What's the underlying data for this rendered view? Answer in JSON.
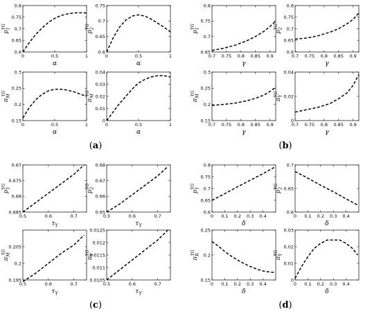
{
  "chart_data": [
    {
      "type": "line",
      "xlabel": "α",
      "ylabel": "p1YG",
      "xlim": [
        0,
        1
      ],
      "ylim": [
        0.6,
        0.8
      ],
      "xticks": [
        "0",
        "0.5",
        "1"
      ],
      "yticks": [
        "0.6",
        "0.65",
        "0.7",
        "0.75",
        "0.8"
      ],
      "series": [
        {
          "style": "dashed",
          "x": [
            0,
            0.1,
            0.2,
            0.3,
            0.4,
            0.5,
            0.6,
            0.7,
            0.8,
            0.9,
            1
          ],
          "y": [
            0.6,
            0.64,
            0.675,
            0.703,
            0.727,
            0.745,
            0.757,
            0.764,
            0.768,
            0.769,
            0.768
          ]
        }
      ]
    },
    {
      "type": "line",
      "xlabel": "α",
      "ylabel": "p2YG",
      "xlim": [
        0,
        1
      ],
      "ylim": [
        0.6,
        0.75
      ],
      "xticks": [
        "0",
        "0.5",
        "1"
      ],
      "yticks": [
        "0.6",
        "0.65",
        "0.7",
        "0.75"
      ],
      "series": [
        {
          "style": "dashed",
          "x": [
            0,
            0.1,
            0.2,
            0.3,
            0.4,
            0.5,
            0.6,
            0.7,
            0.8,
            0.9,
            1
          ],
          "y": [
            0.6,
            0.645,
            0.68,
            0.703,
            0.716,
            0.72,
            0.716,
            0.706,
            0.693,
            0.68,
            0.665
          ]
        }
      ]
    },
    {
      "type": "line",
      "xlabel": "γ",
      "ylabel": "p1YG",
      "xlim": [
        0.7,
        0.92
      ],
      "ylim": [
        0.65,
        0.8
      ],
      "xticks": [
        "0.7",
        "0.75",
        "0.8",
        "0.85",
        "0.9"
      ],
      "yticks": [
        "0.65",
        "0.7",
        "0.75",
        "0.8"
      ],
      "series": [
        {
          "style": "dashed",
          "x": [
            0.7,
            0.74,
            0.78,
            0.82,
            0.85,
            0.88,
            0.9,
            0.92
          ],
          "y": [
            0.655,
            0.662,
            0.672,
            0.686,
            0.7,
            0.717,
            0.732,
            0.75
          ]
        }
      ]
    },
    {
      "type": "line",
      "xlabel": "γ",
      "ylabel": "p2YG",
      "xlim": [
        0.7,
        0.92
      ],
      "ylim": [
        0.6,
        0.8
      ],
      "xticks": [
        "0.7",
        "0.75",
        "0.8",
        "0.85",
        "0.9"
      ],
      "yticks": [
        "0.6",
        "0.65",
        "0.7",
        "0.75",
        "0.8"
      ],
      "series": [
        {
          "style": "dashed",
          "x": [
            0.7,
            0.74,
            0.78,
            0.82,
            0.85,
            0.88,
            0.9,
            0.92
          ],
          "y": [
            0.655,
            0.66,
            0.67,
            0.685,
            0.7,
            0.722,
            0.74,
            0.768
          ]
        }
      ]
    },
    {
      "type": "line",
      "xlabel": "α",
      "ylabel": "πMYG",
      "xlim": [
        0,
        1
      ],
      "ylim": [
        0.15,
        0.3
      ],
      "xticks": [
        "0",
        "0.5",
        "1"
      ],
      "yticks": [
        "0.15",
        "0.2",
        "0.25",
        "0.3"
      ],
      "series": [
        {
          "style": "dashed",
          "x": [
            0,
            0.1,
            0.2,
            0.3,
            0.4,
            0.5,
            0.6,
            0.7,
            0.8,
            0.9,
            1
          ],
          "y": [
            0.158,
            0.19,
            0.214,
            0.231,
            0.242,
            0.247,
            0.247,
            0.244,
            0.239,
            0.232,
            0.225
          ]
        }
      ]
    },
    {
      "type": "line",
      "xlabel": "α",
      "ylabel": "πMYG",
      "xlim": [
        0,
        1
      ],
      "ylim": [
        0,
        0.04
      ],
      "xticks": [
        "0",
        "0.5",
        "1"
      ],
      "yticks": [
        "0",
        "0.01",
        "0.02",
        "0.03",
        "0.04"
      ],
      "series": [
        {
          "style": "dashed",
          "x": [
            0,
            0.1,
            0.2,
            0.3,
            0.4,
            0.5,
            0.6,
            0.7,
            0.8,
            0.9,
            1
          ],
          "y": [
            0,
            0.007,
            0.014,
            0.02,
            0.026,
            0.031,
            0.034,
            0.036,
            0.037,
            0.037,
            0.036
          ]
        }
      ]
    },
    {
      "type": "line",
      "xlabel": "γ",
      "ylabel": "πMYG",
      "xlim": [
        0.7,
        0.92
      ],
      "ylim": [
        0.15,
        0.3
      ],
      "xticks": [
        "0.7",
        "0.75",
        "0.8",
        "0.85",
        "0.9"
      ],
      "yticks": [
        "0.15",
        "0.2",
        "0.25",
        "0.3"
      ],
      "series": [
        {
          "style": "dashed",
          "x": [
            0.7,
            0.74,
            0.78,
            0.82,
            0.85,
            0.88,
            0.9,
            0.92
          ],
          "y": [
            0.197,
            0.2,
            0.204,
            0.211,
            0.219,
            0.229,
            0.24,
            0.253
          ]
        }
      ]
    },
    {
      "type": "line",
      "xlabel": "γ",
      "ylabel": "πYYG",
      "xlim": [
        0.7,
        0.92
      ],
      "ylim": [
        0,
        0.04
      ],
      "xticks": [
        "0.7",
        "0.75",
        "0.8",
        "0.85",
        "0.9"
      ],
      "yticks": [
        "0",
        "0.02",
        "0.04"
      ],
      "series": [
        {
          "style": "dashed",
          "x": [
            0.7,
            0.74,
            0.78,
            0.82,
            0.85,
            0.88,
            0.9,
            0.92
          ],
          "y": [
            0.007,
            0.009,
            0.011,
            0.014,
            0.018,
            0.023,
            0.029,
            0.038
          ]
        }
      ]
    },
    {
      "type": "line",
      "xlabel": "τY",
      "ylabel": "p1YG",
      "xlim": [
        0.5,
        0.75
      ],
      "ylim": [
        0.67,
        0.685
      ],
      "yreverse": true,
      "xticks": [
        "0.5",
        "0.6",
        "0.7"
      ],
      "yticks": [
        "0.67",
        "0.675",
        "0.68",
        "0.685"
      ],
      "series": [
        {
          "style": "dashed",
          "x": [
            0.5,
            0.55,
            0.6,
            0.65,
            0.7,
            0.74
          ],
          "y": [
            0.685,
            0.682,
            0.679,
            0.676,
            0.673,
            0.67
          ]
        }
      ]
    },
    {
      "type": "line",
      "xlabel": "τY",
      "ylabel": "p2YG",
      "xlim": [
        0.5,
        0.75
      ],
      "ylim": [
        0.65,
        0.68
      ],
      "xticks": [
        "0.5",
        "0.6",
        "0.7"
      ],
      "yticks": [
        "0.65",
        "0.66",
        "0.67",
        "0.68"
      ],
      "series": [
        {
          "style": "dashed",
          "x": [
            0.5,
            0.55,
            0.6,
            0.65,
            0.7,
            0.74
          ],
          "y": [
            0.65,
            0.655,
            0.661,
            0.667,
            0.673,
            0.679
          ]
        }
      ]
    },
    {
      "type": "line",
      "xlabel": "δ",
      "ylabel": "p1YG",
      "xlim": [
        0,
        0.5
      ],
      "ylim": [
        0.6,
        0.8
      ],
      "xticks": [
        "0",
        "0.1",
        "0.2",
        "0.3",
        "0.4"
      ],
      "yticks": [
        "0.6",
        "0.65",
        "0.7",
        "0.75",
        "0.8"
      ],
      "series": [
        {
          "style": "dashed",
          "x": [
            0,
            0.1,
            0.2,
            0.3,
            0.4,
            0.49
          ],
          "y": [
            0.65,
            0.678,
            0.707,
            0.735,
            0.763,
            0.79
          ]
        }
      ]
    },
    {
      "type": "line",
      "xlabel": "δ",
      "ylabel": "p2YG",
      "xlim": [
        0,
        0.5
      ],
      "ylim": [
        0.6,
        0.7
      ],
      "xticks": [
        "0",
        "0.1",
        "0.2",
        "0.3",
        "0.4"
      ],
      "yticks": [
        "0.6",
        "0.65",
        "0.7"
      ],
      "series": [
        {
          "style": "dashed",
          "x": [
            0,
            0.1,
            0.2,
            0.3,
            0.4,
            0.49
          ],
          "y": [
            0.686,
            0.672,
            0.657,
            0.643,
            0.628,
            0.615
          ]
        }
      ]
    },
    {
      "type": "line",
      "xlabel": "τY",
      "ylabel": "πMYG",
      "xlim": [
        0.5,
        0.75
      ],
      "ylim": [
        0.195,
        0.21
      ],
      "xticks": [
        "0.5",
        "0.6",
        "0.7"
      ],
      "yticks": [
        "0.195",
        "0.2",
        "0.205"
      ],
      "series": [
        {
          "style": "dashed",
          "x": [
            0.5,
            0.55,
            0.6,
            0.65,
            0.7,
            0.74
          ],
          "y": [
            0.1945,
            0.197,
            0.2,
            0.203,
            0.2055,
            0.2085
          ]
        }
      ]
    },
    {
      "type": "line",
      "xlabel": "τY",
      "ylabel": "πYYG",
      "xlim": [
        0.5,
        0.75
      ],
      "ylim": [
        0.0105,
        0.0125
      ],
      "xticks": [
        "0.5",
        "0.6",
        "0.7"
      ],
      "yticks": [
        "0.0105",
        "0.011",
        "0.0115",
        "0.012",
        "0.0125"
      ],
      "series": [
        {
          "style": "dashed",
          "x": [
            0.5,
            0.55,
            0.6,
            0.65,
            0.7,
            0.74
          ],
          "y": [
            0.0105,
            0.0109,
            0.0113,
            0.0117,
            0.0121,
            0.0125
          ]
        }
      ]
    },
    {
      "type": "line",
      "xlabel": "δ",
      "ylabel": "πRYG",
      "xlim": [
        0,
        0.5
      ],
      "ylim": [
        0.15,
        0.25
      ],
      "xticks": [
        "0",
        "0.1",
        "0.2",
        "0.3",
        "0.4"
      ],
      "yticks": [
        "0.15",
        "0.2",
        "0.25"
      ],
      "series": [
        {
          "style": "dashed",
          "x": [
            0,
            0.05,
            0.1,
            0.15,
            0.2,
            0.25,
            0.3,
            0.35,
            0.4,
            0.45,
            0.49
          ],
          "y": [
            0.227,
            0.218,
            0.207,
            0.198,
            0.19,
            0.183,
            0.177,
            0.172,
            0.168,
            0.166,
            0.165
          ]
        }
      ]
    },
    {
      "type": "line",
      "xlabel": "δ",
      "ylabel": "πYYG",
      "xlim": [
        0,
        0.5
      ],
      "ylim": [
        0,
        0.03
      ],
      "xticks": [
        "0",
        "0.1",
        "0.2",
        "0.3",
        "0.4"
      ],
      "yticks": [
        "0",
        "0.01",
        "0.02",
        "0.03"
      ],
      "series": [
        {
          "style": "dashed",
          "x": [
            0,
            0.05,
            0.1,
            0.15,
            0.2,
            0.25,
            0.3,
            0.35,
            0.4,
            0.45,
            0.49
          ],
          "y": [
            0.001,
            0.008,
            0.014,
            0.019,
            0.022,
            0.024,
            0.024,
            0.024,
            0.022,
            0.019,
            0.015
          ]
        }
      ]
    }
  ],
  "panel_labels": [
    "(a)",
    "(b)",
    "(c)",
    "(d)"
  ]
}
